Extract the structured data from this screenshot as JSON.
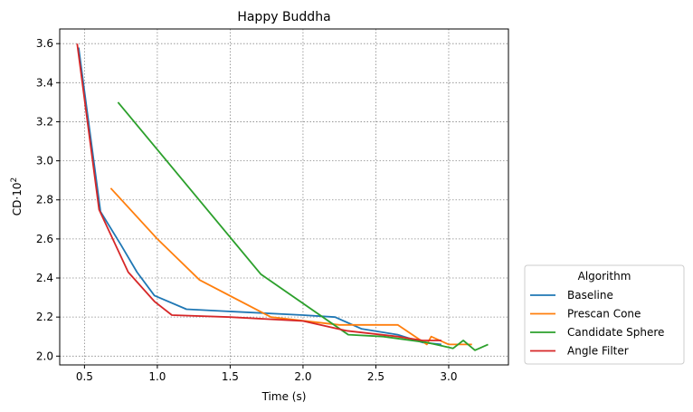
{
  "chart_data": {
    "type": "line",
    "title": "Happy Buddha",
    "xlabel": "Time (s)",
    "ylabel_main": "CD·10",
    "ylabel_sup": "2",
    "xlim": [
      0.33,
      3.41
    ],
    "ylim": [
      1.955,
      3.675
    ],
    "xticks": [
      0.5,
      1.0,
      1.5,
      2.0,
      2.5,
      3.0
    ],
    "xtick_labels": [
      "0.5",
      "1.0",
      "1.5",
      "2.0",
      "2.5",
      "3.0"
    ],
    "yticks": [
      2.0,
      2.2,
      2.4,
      2.6,
      2.8,
      3.0,
      3.2,
      3.4,
      3.6
    ],
    "ytick_labels": [
      "2.0",
      "2.2",
      "2.4",
      "2.6",
      "2.8",
      "3.0",
      "3.2",
      "3.4",
      "3.6"
    ],
    "grid": true,
    "legend": {
      "title": "Algorithm",
      "placement": "outside-lower-right"
    },
    "series": [
      {
        "name": "Baseline",
        "color": "#1f77b4",
        "x": [
          0.46,
          0.61,
          0.75,
          0.86,
          0.98,
          1.2,
          2.0,
          2.22,
          2.4,
          2.65,
          2.82,
          2.95
        ],
        "y": [
          3.58,
          2.74,
          2.57,
          2.43,
          2.31,
          2.24,
          2.21,
          2.2,
          2.14,
          2.11,
          2.07,
          2.06
        ]
      },
      {
        "name": "Prescan Cone",
        "color": "#ff7f0e",
        "x": [
          0.68,
          1.0,
          1.29,
          1.78,
          2.25,
          2.65,
          2.85,
          2.88,
          3.0,
          3.16
        ],
        "y": [
          2.86,
          2.6,
          2.39,
          2.2,
          2.16,
          2.16,
          2.06,
          2.1,
          2.06,
          2.06
        ]
      },
      {
        "name": "Candidate Sphere",
        "color": "#2ca02c",
        "x": [
          0.73,
          1.71,
          2.31,
          2.55,
          2.85,
          3.03,
          3.1,
          3.18,
          3.27
        ],
        "y": [
          3.3,
          2.42,
          2.11,
          2.1,
          2.07,
          2.04,
          2.08,
          2.03,
          2.06
        ]
      },
      {
        "name": "Angle Filter",
        "color": "#d62728",
        "x": [
          0.45,
          0.6,
          0.8,
          0.98,
          1.1,
          1.5,
          2.0,
          2.3,
          2.65,
          2.82,
          2.95
        ],
        "y": [
          3.6,
          2.75,
          2.43,
          2.28,
          2.21,
          2.2,
          2.18,
          2.13,
          2.1,
          2.08,
          2.08
        ]
      }
    ]
  }
}
